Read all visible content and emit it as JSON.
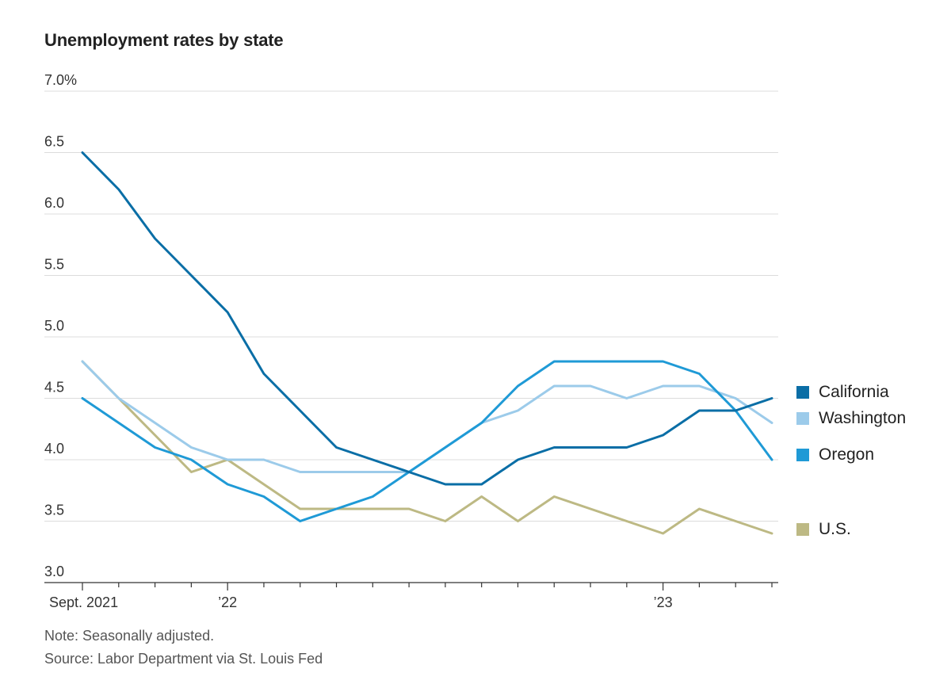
{
  "title": "Unemployment rates by state",
  "chart_data": {
    "type": "line",
    "title": "Unemployment rates by state",
    "ylim": [
      3.0,
      7.0
    ],
    "y_ticks": [
      3.0,
      3.5,
      4.0,
      4.5,
      5.0,
      5.5,
      6.0,
      6.5,
      7.0
    ],
    "y_tick_labels": [
      "3.0",
      "3.5",
      "4.0",
      "4.5",
      "5.0",
      "5.5",
      "6.0",
      "6.5",
      "7.0%"
    ],
    "x": [
      "2021-09",
      "2021-10",
      "2021-11",
      "2021-12",
      "2022-01",
      "2022-02",
      "2022-03",
      "2022-04",
      "2022-05",
      "2022-06",
      "2022-07",
      "2022-08",
      "2022-09",
      "2022-10",
      "2022-11",
      "2022-12",
      "2023-01",
      "2023-02",
      "2023-03",
      "2023-04"
    ],
    "x_tick_labels": [
      {
        "index": 0,
        "label": "Sept. 2021"
      },
      {
        "index": 4,
        "label": "’22"
      },
      {
        "index": 16,
        "label": "’23"
      }
    ],
    "grid": true,
    "legend": "right",
    "series": [
      {
        "name": "California",
        "color": "#0a6ea6",
        "values": [
          6.5,
          6.2,
          5.8,
          5.5,
          5.2,
          4.7,
          4.4,
          4.1,
          4.0,
          3.9,
          3.8,
          3.8,
          4.0,
          4.1,
          4.1,
          4.1,
          4.2,
          4.4,
          4.4,
          4.5
        ]
      },
      {
        "name": "Washington",
        "color": "#9ccbea",
        "values": [
          4.8,
          4.5,
          4.3,
          4.1,
          4.0,
          4.0,
          3.9,
          3.9,
          3.9,
          3.9,
          4.1,
          4.3,
          4.4,
          4.6,
          4.6,
          4.5,
          4.6,
          4.6,
          4.5,
          4.3
        ]
      },
      {
        "name": "Oregon",
        "color": "#1f9ad6",
        "values": [
          4.5,
          4.3,
          4.1,
          4.0,
          3.8,
          3.7,
          3.5,
          3.6,
          3.7,
          3.9,
          4.1,
          4.3,
          4.6,
          4.8,
          4.8,
          4.8,
          4.8,
          4.7,
          4.4,
          4.0
        ]
      },
      {
        "name": "U.S.",
        "color": "#bdb984",
        "values": [
          4.8,
          4.5,
          4.2,
          3.9,
          4.0,
          3.8,
          3.6,
          3.6,
          3.6,
          3.6,
          3.5,
          3.7,
          3.5,
          3.7,
          3.6,
          3.5,
          3.4,
          3.6,
          3.5,
          3.4
        ]
      }
    ]
  },
  "notes": {
    "note": "Note: Seasonally adjusted.",
    "source": "Source: Labor Department via St. Louis Fed"
  }
}
